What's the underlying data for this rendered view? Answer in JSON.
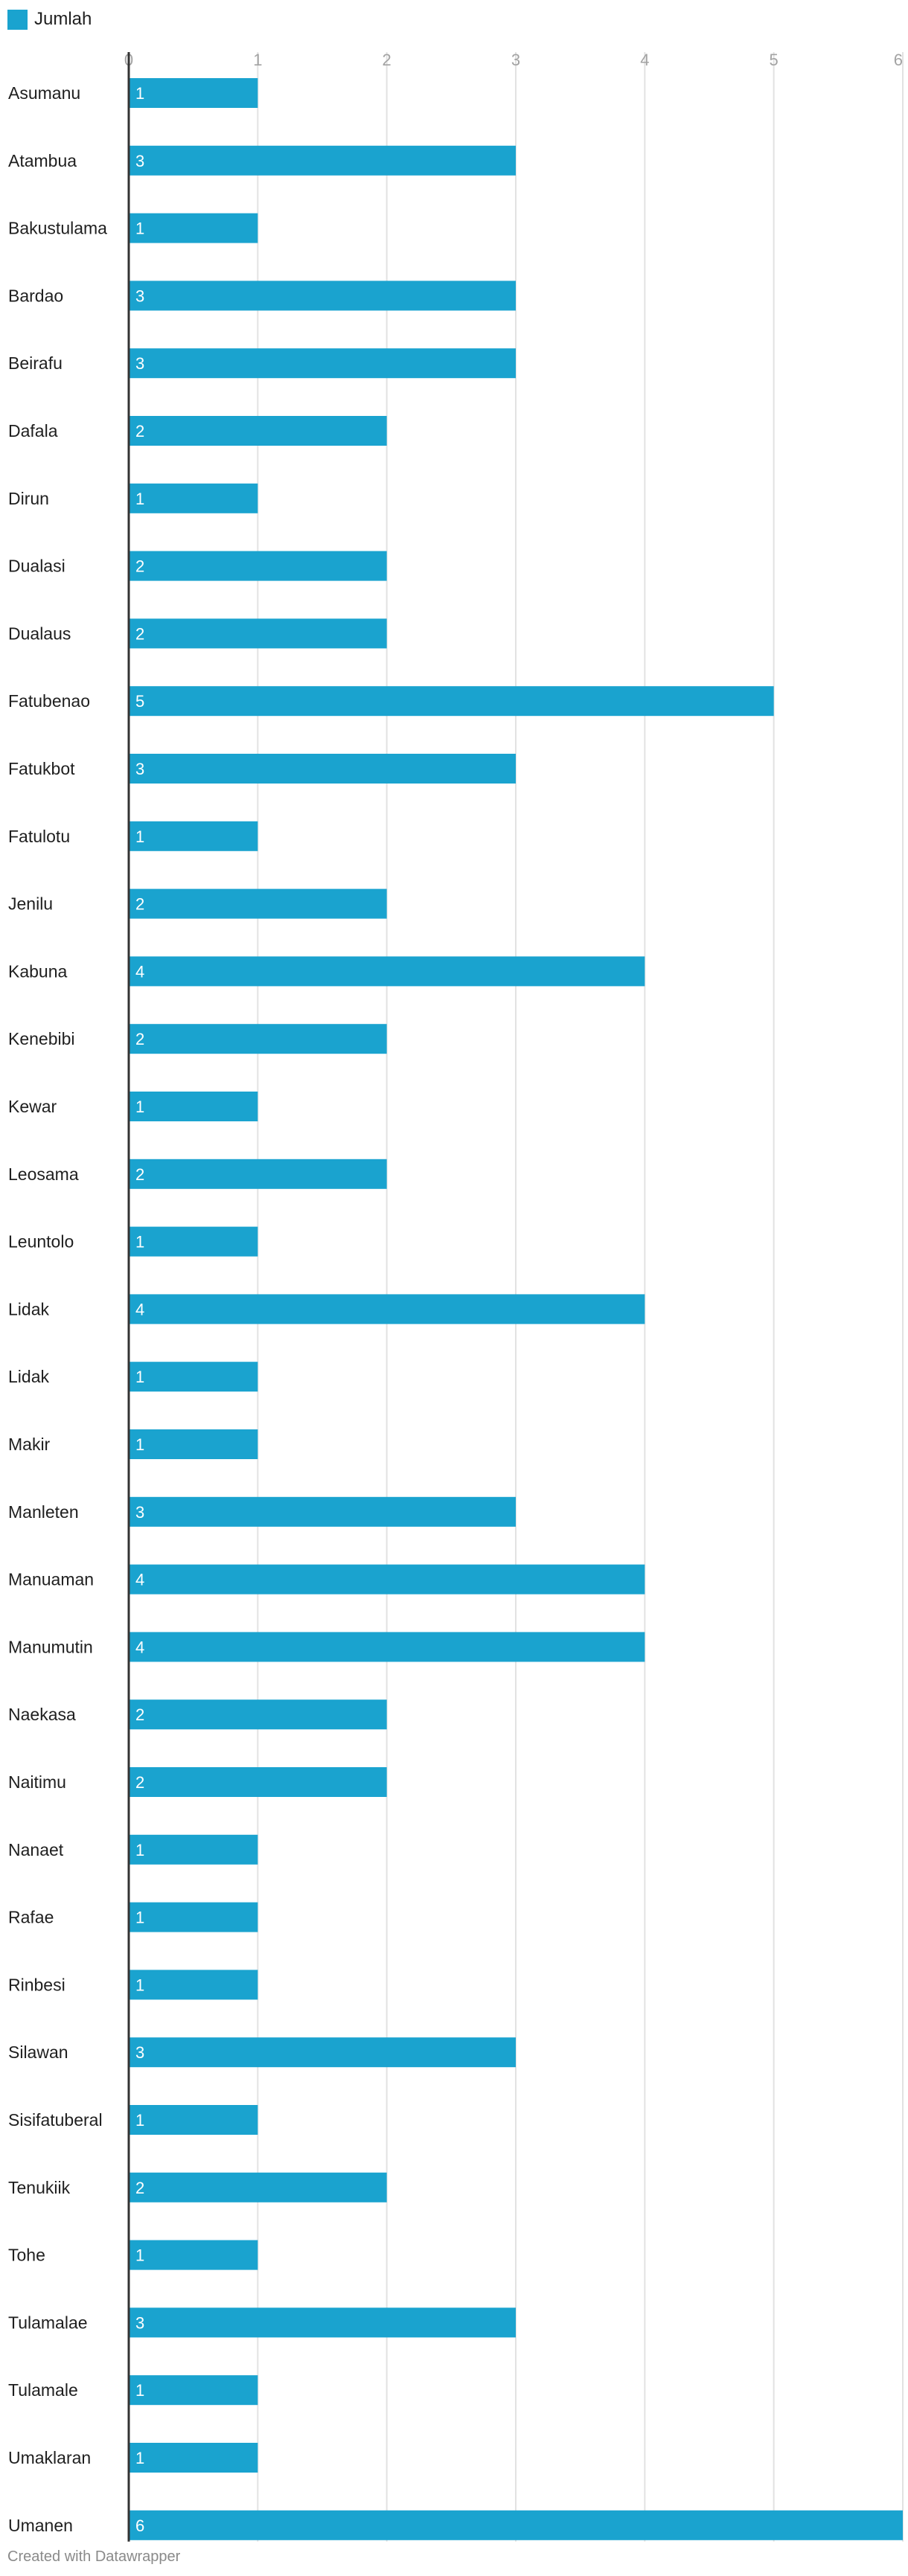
{
  "legend": {
    "label": "Jumlah",
    "color": "#1aa3cf"
  },
  "credit": "Created with Datawrapper",
  "chart_data": {
    "type": "bar",
    "orientation": "horizontal",
    "xlim": [
      0,
      6
    ],
    "ticks": [
      0,
      1,
      2,
      3,
      4,
      5,
      6
    ],
    "grid": true,
    "legend_position": "top-left",
    "bar_color": "#1aa3cf",
    "series": [
      {
        "name": "Jumlah",
        "values": [
          1,
          3,
          1,
          3,
          3,
          2,
          1,
          2,
          2,
          5,
          3,
          1,
          2,
          4,
          2,
          1,
          2,
          1,
          4,
          1,
          1,
          3,
          4,
          4,
          2,
          2,
          1,
          1,
          1,
          3,
          1,
          2,
          1,
          3,
          1,
          1,
          6
        ]
      }
    ],
    "categories": [
      "Asumanu",
      "Atambua",
      "Bakustulama",
      "Bardao",
      "Beirafu",
      "Dafala",
      "Dirun",
      "Dualasi",
      "Dualaus",
      "Fatubenao",
      "Fatukbot",
      "Fatulotu",
      "Jenilu",
      "Kabuna",
      "Kenebibi",
      "Kewar",
      "Leosama",
      "Leuntolo",
      "Lidak",
      "Lidak",
      "Makir",
      "Manleten",
      "Manuaman",
      "Manumutin",
      "Naekasa",
      "Naitimu",
      "Nanaet",
      "Rafae",
      "Rinbesi",
      "Silawan",
      "Sisifatuberal",
      "Tenukiik",
      "Tohe",
      "Tulamalae",
      "Tulamale",
      "Umaklaran",
      "Umanen"
    ]
  }
}
